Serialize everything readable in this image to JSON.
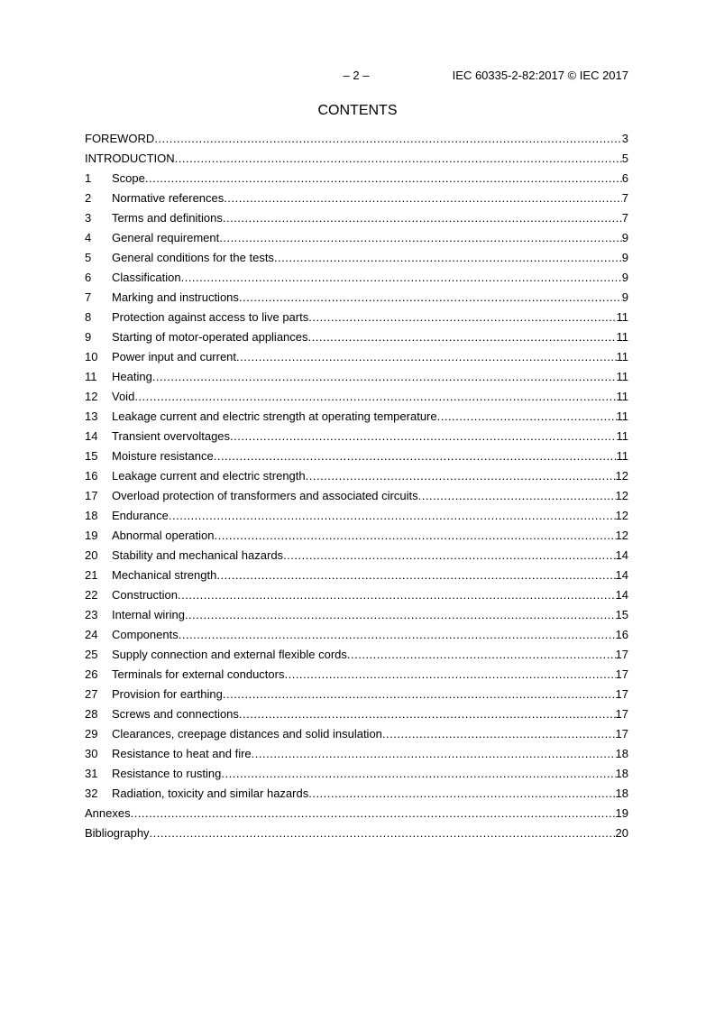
{
  "header": {
    "page": "– 2 –",
    "doc_id": "IEC 60335-2-82:2017 © IEC 2017"
  },
  "title": "CONTENTS",
  "entries": [
    {
      "num": "",
      "label": "FOREWORD",
      "page": "3"
    },
    {
      "num": "",
      "label": "INTRODUCTION",
      "page": "5"
    },
    {
      "num": "1",
      "label": "Scope",
      "page": "6"
    },
    {
      "num": "2",
      "label": "Normative references",
      "page": "7"
    },
    {
      "num": "3",
      "label": "Terms and definitions",
      "page": "7"
    },
    {
      "num": "4",
      "label": "General requirement",
      "page": "9"
    },
    {
      "num": "5",
      "label": "General conditions for the tests",
      "page": "9"
    },
    {
      "num": "6",
      "label": "Classification",
      "page": "9"
    },
    {
      "num": "7",
      "label": "Marking and instructions",
      "page": "9"
    },
    {
      "num": "8",
      "label": "Protection against access to live parts",
      "page": "11"
    },
    {
      "num": "9",
      "label": "Starting of motor-operated appliances",
      "page": "11"
    },
    {
      "num": "10",
      "label": "Power input and current",
      "page": "11"
    },
    {
      "num": "11",
      "label": "Heating",
      "page": "11"
    },
    {
      "num": "12",
      "label": "Void",
      "page": "11"
    },
    {
      "num": "13",
      "label": "Leakage current and electric strength at operating temperature",
      "page": "11"
    },
    {
      "num": "14",
      "label": "Transient overvoltages",
      "page": "11"
    },
    {
      "num": "15",
      "label": "Moisture resistance",
      "page": "11"
    },
    {
      "num": "16",
      "label": "Leakage current and electric strength",
      "page": "12"
    },
    {
      "num": "17",
      "label": "Overload protection of transformers and associated circuits",
      "page": "12"
    },
    {
      "num": "18",
      "label": "Endurance",
      "page": "12"
    },
    {
      "num": "19",
      "label": "Abnormal operation",
      "page": "12"
    },
    {
      "num": "20",
      "label": "Stability and mechanical hazards",
      "page": "14"
    },
    {
      "num": "21",
      "label": "Mechanical strength",
      "page": "14"
    },
    {
      "num": "22",
      "label": "Construction",
      "page": "14"
    },
    {
      "num": "23",
      "label": "Internal wiring",
      "page": "15"
    },
    {
      "num": "24",
      "label": "Components",
      "page": "16"
    },
    {
      "num": "25",
      "label": "Supply connection and external flexible cords",
      "page": "17"
    },
    {
      "num": "26",
      "label": "Terminals for external conductors",
      "page": "17"
    },
    {
      "num": "27",
      "label": "Provision for earthing",
      "page": "17"
    },
    {
      "num": "28",
      "label": "Screws and connections",
      "page": "17"
    },
    {
      "num": "29",
      "label": "Clearances, creepage distances and solid insulation",
      "page": "17"
    },
    {
      "num": "30",
      "label": "Resistance to heat and fire",
      "page": "18"
    },
    {
      "num": "31",
      "label": "Resistance to rusting",
      "page": "18"
    },
    {
      "num": "32",
      "label": "Radiation, toxicity and similar hazards",
      "page": "18"
    },
    {
      "num": "",
      "label": "Annexes",
      "page": "19"
    },
    {
      "num": "",
      "label": "Bibliography",
      "page": "20"
    }
  ]
}
